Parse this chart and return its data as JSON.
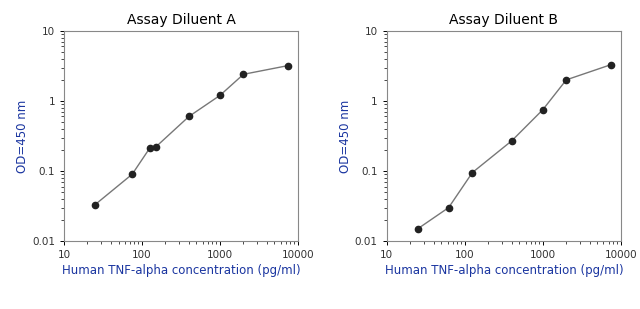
{
  "panel_A": {
    "title": "Assay Diluent A",
    "x": [
      25,
      75,
      125,
      150,
      400,
      1000,
      2000,
      7500
    ],
    "y": [
      0.033,
      0.09,
      0.21,
      0.22,
      0.6,
      1.2,
      2.4,
      3.2
    ]
  },
  "panel_B": {
    "title": "Assay Diluent B",
    "x": [
      25,
      62,
      125,
      400,
      1000,
      2000,
      7500
    ],
    "y": [
      0.015,
      0.03,
      0.095,
      0.27,
      0.75,
      2.0,
      3.3
    ]
  },
  "xlabel": "Human TNF-alpha concentration (pg/ml)",
  "ylabel": "OD=450 nm",
  "xlim": [
    10,
    10000
  ],
  "ylim": [
    0.01,
    10
  ],
  "line_color": "#777777",
  "marker_color": "#222222",
  "title_color": "#000000",
  "label_color": "#1a35a0",
  "tick_label_color": "#333333",
  "title_fontsize": 10,
  "label_fontsize": 8.5,
  "tick_fontsize": 7.5,
  "marker_size": 4.5
}
